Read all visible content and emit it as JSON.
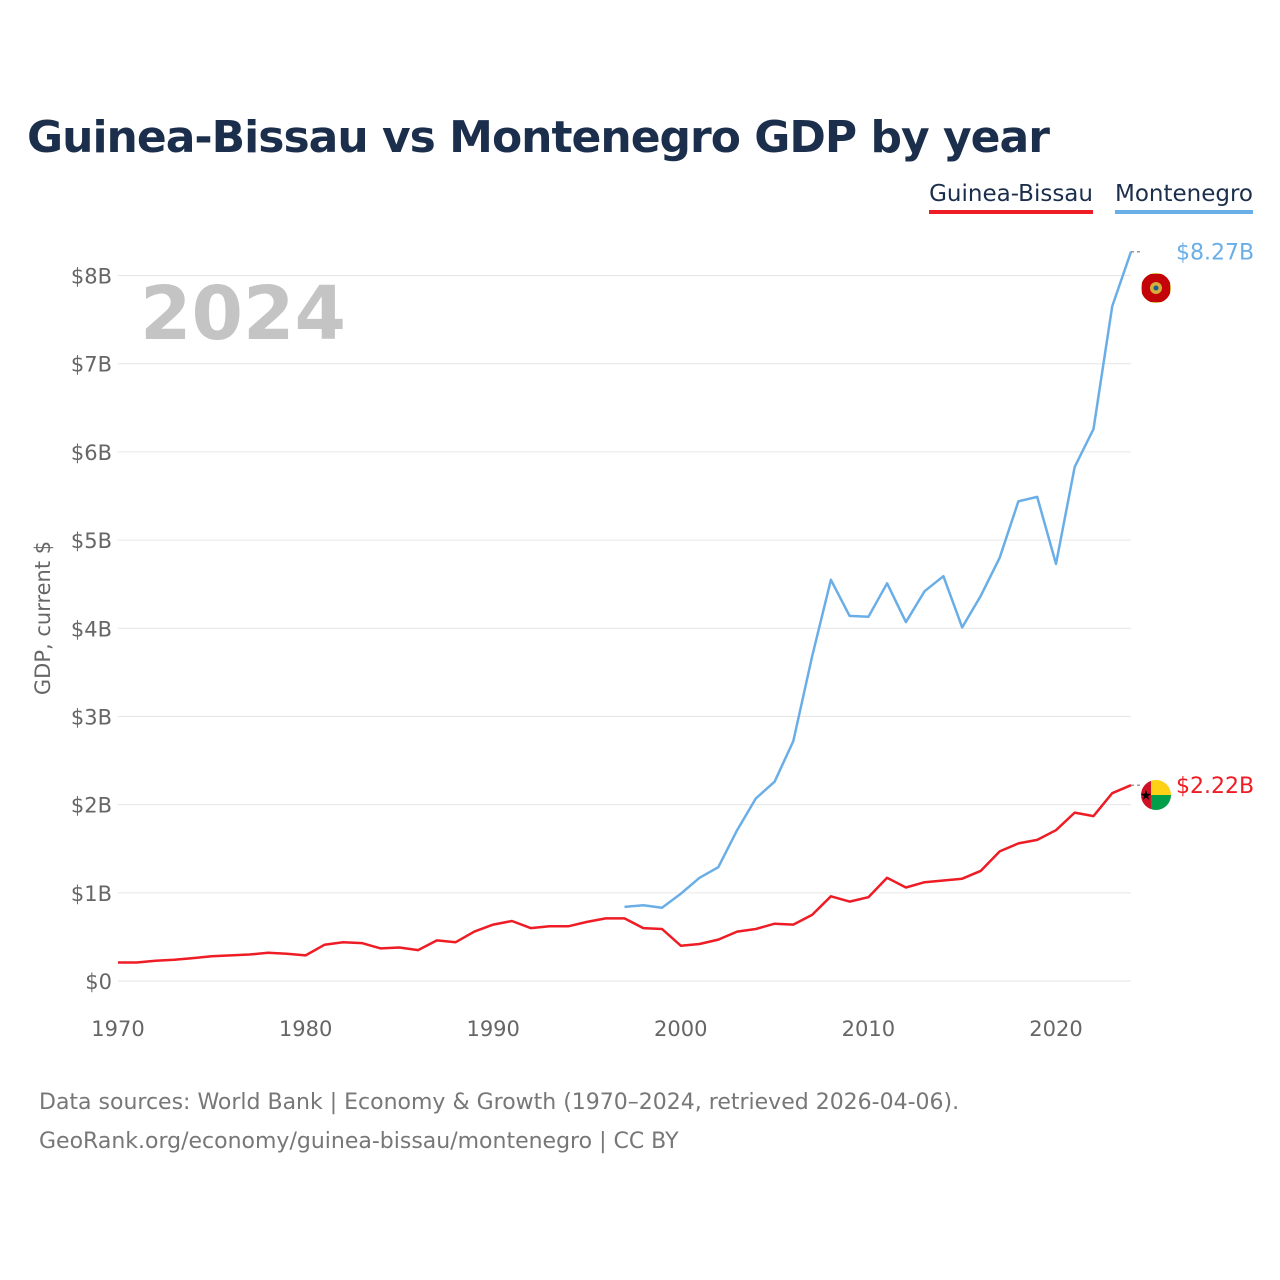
{
  "title": "Guinea-Bissau vs Montenegro GDP by year",
  "legend": [
    {
      "label": "Guinea-Bissau",
      "color": "#ee1c25"
    },
    {
      "label": "Montenegro",
      "color": "#6aaee8"
    }
  ],
  "footer": {
    "line1": "Data sources: World Bank | Economy & Growth (1970–2024, retrieved 2026-04-06).",
    "line2": "GeoRank.org/economy/guinea-bissau/montenegro | CC BY"
  },
  "chart_data": {
    "type": "line",
    "title": "Guinea-Bissau vs Montenegro GDP by year",
    "year_label": "2024",
    "xlabel": "",
    "ylabel": "GDP, current $",
    "xlim": [
      1970,
      2024
    ],
    "ylim": [
      0,
      8.8
    ],
    "x_ticks": [
      1970,
      1980,
      1990,
      2000,
      2010,
      2020
    ],
    "y_ticks": [
      {
        "value": 0,
        "label": "$0"
      },
      {
        "value": 1,
        "label": "$1B"
      },
      {
        "value": 2,
        "label": "$2B"
      },
      {
        "value": 3,
        "label": "$3B"
      },
      {
        "value": 4,
        "label": "$4B"
      },
      {
        "value": 5,
        "label": "$5B"
      },
      {
        "value": 6,
        "label": "$6B"
      },
      {
        "value": 7,
        "label": "$7B"
      },
      {
        "value": 8,
        "label": "$8B"
      }
    ],
    "series": [
      {
        "name": "Guinea-Bissau",
        "color": "#ee1c25",
        "end_label": "$2.22B",
        "x": [
          1970,
          1971,
          1972,
          1973,
          1974,
          1975,
          1976,
          1977,
          1978,
          1979,
          1980,
          1981,
          1982,
          1983,
          1984,
          1985,
          1986,
          1987,
          1988,
          1989,
          1990,
          1991,
          1992,
          1993,
          1994,
          1995,
          1996,
          1997,
          1998,
          1999,
          2000,
          2001,
          2002,
          2003,
          2004,
          2005,
          2006,
          2007,
          2008,
          2009,
          2010,
          2011,
          2012,
          2013,
          2014,
          2015,
          2016,
          2017,
          2018,
          2019,
          2020,
          2021,
          2022,
          2023,
          2024
        ],
        "values": [
          0.21,
          0.21,
          0.23,
          0.24,
          0.26,
          0.28,
          0.29,
          0.3,
          0.32,
          0.31,
          0.29,
          0.41,
          0.44,
          0.43,
          0.37,
          0.38,
          0.35,
          0.46,
          0.44,
          0.56,
          0.64,
          0.68,
          0.6,
          0.62,
          0.62,
          0.67,
          0.71,
          0.71,
          0.6,
          0.59,
          0.4,
          0.42,
          0.47,
          0.56,
          0.59,
          0.65,
          0.64,
          0.75,
          0.96,
          0.9,
          0.95,
          1.17,
          1.06,
          1.12,
          1.14,
          1.16,
          1.25,
          1.47,
          1.56,
          1.6,
          1.71,
          1.91,
          1.87,
          2.13,
          2.22
        ]
      },
      {
        "name": "Montenegro",
        "color": "#6aaee8",
        "end_label": "$8.27B",
        "x": [
          1997,
          1998,
          1999,
          2000,
          2001,
          2002,
          2003,
          2004,
          2005,
          2006,
          2007,
          2008,
          2009,
          2010,
          2011,
          2012,
          2013,
          2014,
          2015,
          2016,
          2017,
          2018,
          2019,
          2020,
          2021,
          2022,
          2023,
          2024
        ],
        "values": [
          0.84,
          0.86,
          0.83,
          0.99,
          1.17,
          1.29,
          1.71,
          2.07,
          2.26,
          2.72,
          3.68,
          4.55,
          4.14,
          4.13,
          4.51,
          4.07,
          4.42,
          4.59,
          4.01,
          4.37,
          4.8,
          5.44,
          5.49,
          4.73,
          5.83,
          6.26,
          7.65,
          8.27
        ]
      }
    ]
  }
}
